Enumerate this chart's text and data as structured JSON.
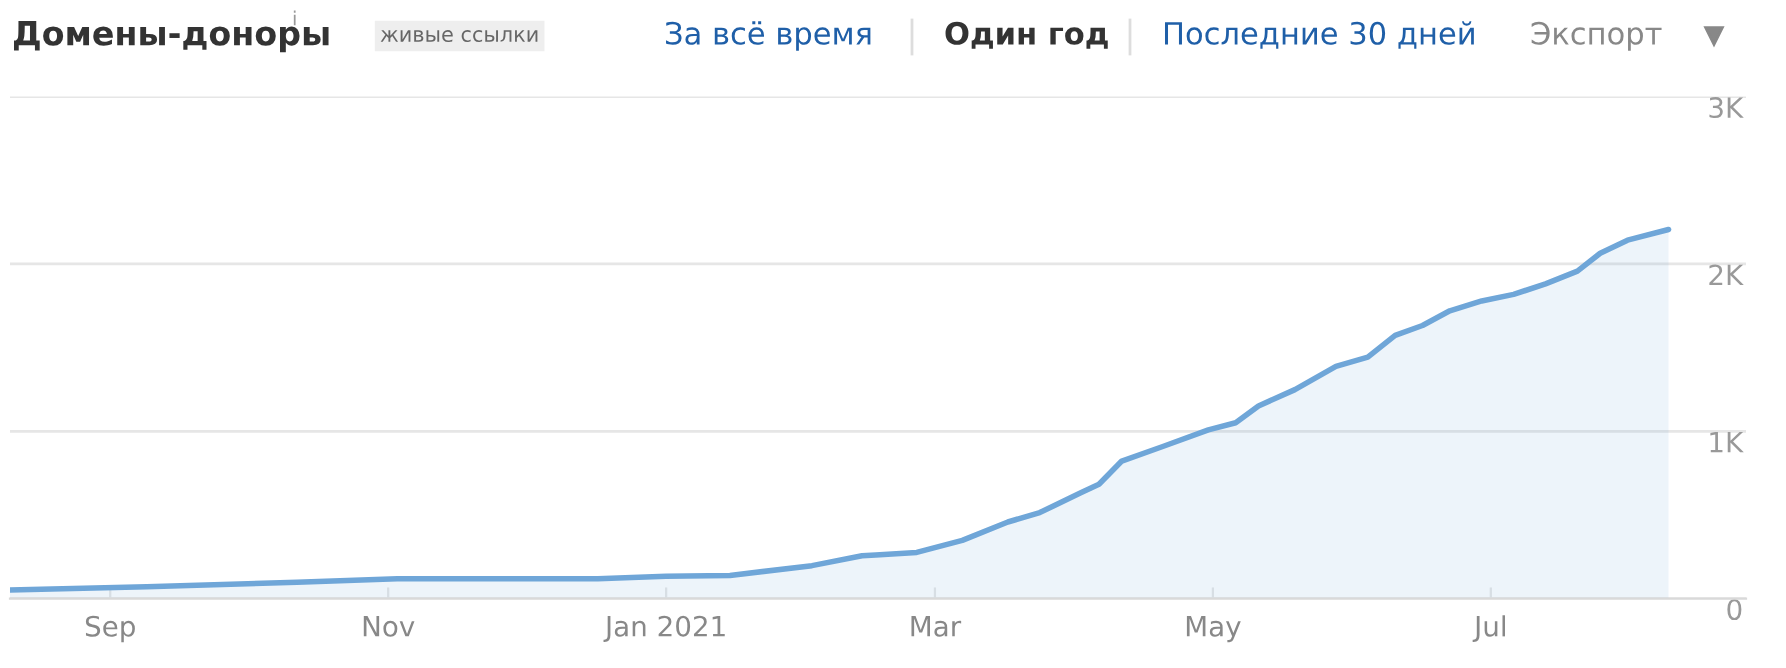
{
  "chart_data": {
    "type": "area",
    "title": "Домены-доноры",
    "annotations": [
      "i",
      "живые ссылки",
      "За всё время",
      "Один год",
      "Последние 30 дней",
      "Экспорт"
    ],
    "x": [
      "2020-08-10",
      "2020-09-09",
      "2020-10-12",
      "2020-11-03",
      "2020-12-17",
      "2021-01-01",
      "2021-01-15",
      "2021-02-02",
      "2021-02-13",
      "2021-02-16",
      "2021-02-25",
      "2021-03-07",
      "2021-03-17",
      "2021-03-24",
      "2021-04-02",
      "2021-04-06",
      "2021-04-11",
      "2021-04-20",
      "2021-04-30",
      "2021-05-06",
      "2021-05-11",
      "2021-05-19",
      "2021-05-28",
      "2021-06-04",
      "2021-06-10",
      "2021-06-16",
      "2021-06-22",
      "2021-06-29",
      "2021-07-06",
      "2021-07-13",
      "2021-07-20",
      "2021-07-25",
      "2021-07-31",
      "2021-08-09"
    ],
    "series": [
      {
        "color": "#6fa6d8",
        "values": [
          51,
          71,
          98,
          119,
          119,
          134,
          138,
          197,
          256,
          261,
          276,
          348,
          458,
          514,
          632,
          683,
          822,
          909,
          1008,
          1051,
          1151,
          1249,
          1388,
          1443,
          1573,
          1632,
          1720,
          1779,
          1818,
          1881,
          1957,
          2064,
          2142,
          2206
        ]
      }
    ],
    "xlim": [
      "2020-08-10",
      "2021-08-26"
    ],
    "xticks": [
      {
        "value": "2020-09-01",
        "label": "Sep"
      },
      {
        "value": "2020-11-01",
        "label": "Nov"
      },
      {
        "value": "2021-01-01",
        "label": "Jan 2021"
      },
      {
        "value": "2021-03-01",
        "label": "Mar"
      },
      {
        "value": "2021-05-01",
        "label": "May"
      },
      {
        "value": "2021-07-01",
        "label": "Jul"
      }
    ],
    "ylim": [
      0,
      3000
    ],
    "yticks": [
      0,
      {
        "value": 1000,
        "label": "1K"
      },
      {
        "value": 2000,
        "label": "2K"
      },
      {
        "value": 3000,
        "label": "3K"
      }
    ],
    "grid": "y",
    "legend": false
  }
}
